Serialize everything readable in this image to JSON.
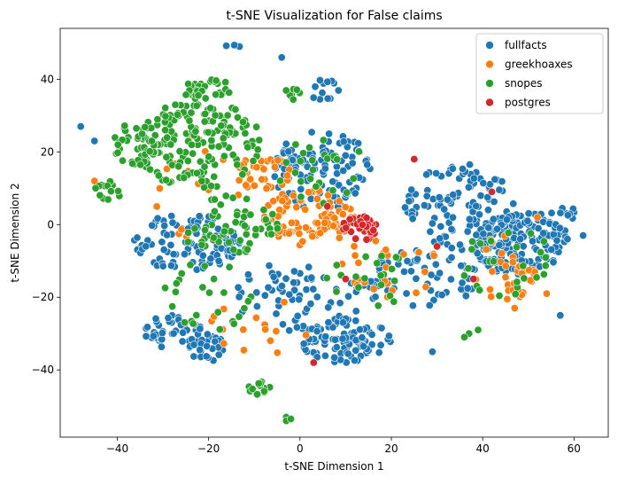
{
  "chart_data": {
    "type": "scatter",
    "title": "t-SNE Visualization for False claims",
    "xlabel": "t-SNE Dimension 1",
    "ylabel": "t-SNE Dimension 2",
    "xlim": [
      -52.5,
      67.5
    ],
    "ylim": [
      -58.5,
      54.0
    ],
    "xticks": [
      -40,
      -20,
      0,
      20,
      40,
      60
    ],
    "yticks": [
      -40,
      -20,
      0,
      20,
      40
    ],
    "grid": false,
    "legend": {
      "position": "top-right",
      "frame": true
    },
    "marker": "circle",
    "series": [
      {
        "name": "fullfacts",
        "color": "#1f77b4",
        "clusters": [
          {
            "cx": 48,
            "cy": -5,
            "rx": 10,
            "ry": 9,
            "n": 170,
            "seed": 101
          },
          {
            "cx": 35,
            "cy": 5,
            "rx": 12,
            "ry": 12,
            "n": 110,
            "seed": 102
          },
          {
            "cx": 5,
            "cy": 15,
            "rx": 11,
            "ry": 11,
            "n": 120,
            "seed": 103
          },
          {
            "cx": 10,
            "cy": -32,
            "rx": 10,
            "ry": 6,
            "n": 90,
            "seed": 104
          },
          {
            "cx": -28,
            "cy": -30,
            "rx": 7,
            "ry": 5,
            "n": 50,
            "seed": 105
          },
          {
            "cx": -20,
            "cy": -34,
            "rx": 4,
            "ry": 4,
            "n": 25,
            "seed": 106
          },
          {
            "cx": -25,
            "cy": -5,
            "rx": 12,
            "ry": 8,
            "n": 110,
            "seed": 107
          },
          {
            "cx": 25,
            "cy": -15,
            "rx": 14,
            "ry": 8,
            "n": 70,
            "seed": 108
          },
          {
            "cx": 0,
            "cy": -20,
            "rx": 15,
            "ry": 10,
            "n": 70,
            "seed": 109
          },
          {
            "cx": 5,
            "cy": 37,
            "rx": 4,
            "ry": 3,
            "n": 12,
            "seed": 110
          },
          {
            "cx": -15,
            "cy": 49,
            "rx": 2,
            "ry": 0.6,
            "n": 5,
            "seed": 111
          },
          {
            "cx": 58,
            "cy": 0,
            "rx": 4,
            "ry": 5,
            "n": 18,
            "seed": 112
          }
        ],
        "points": [
          [
            -48,
            27
          ],
          [
            -45,
            23
          ],
          [
            -4,
            46
          ],
          [
            62,
            -3
          ],
          [
            57,
            -25
          ],
          [
            29,
            -35
          ]
        ]
      },
      {
        "name": "greekhoaxes",
        "color": "#ff7f0e",
        "clusters": [
          {
            "cx": 2,
            "cy": 2,
            "rx": 10,
            "ry": 8,
            "n": 90,
            "seed": 201
          },
          {
            "cx": -8,
            "cy": 14,
            "rx": 6,
            "ry": 5,
            "n": 35,
            "seed": 202
          },
          {
            "cx": 45,
            "cy": -12,
            "rx": 7,
            "ry": 9,
            "n": 35,
            "seed": 203
          },
          {
            "cx": 20,
            "cy": -12,
            "rx": 12,
            "ry": 9,
            "n": 25,
            "seed": 204
          },
          {
            "cx": -22,
            "cy": 10,
            "rx": 12,
            "ry": 15,
            "n": 15,
            "seed": 205
          },
          {
            "cx": -5,
            "cy": -28,
            "rx": 15,
            "ry": 8,
            "n": 15,
            "seed": 206
          }
        ],
        "points": [
          [
            -45,
            12
          ],
          [
            52,
            2
          ],
          [
            54,
            -19
          ],
          [
            47,
            -23
          ]
        ]
      },
      {
        "name": "snopes",
        "color": "#2ca02c",
        "clusters": [
          {
            "cx": -22,
            "cy": 22,
            "rx": 14,
            "ry": 12,
            "n": 160,
            "seed": 301
          },
          {
            "cx": -36,
            "cy": 22,
            "rx": 5,
            "ry": 6,
            "n": 40,
            "seed": 302
          },
          {
            "cx": -42,
            "cy": 9,
            "rx": 3,
            "ry": 3,
            "n": 15,
            "seed": 303
          },
          {
            "cx": -20,
            "cy": 37,
            "rx": 6,
            "ry": 3,
            "n": 35,
            "seed": 304
          },
          {
            "cx": -15,
            "cy": 0,
            "rx": 12,
            "ry": 8,
            "n": 60,
            "seed": 305
          },
          {
            "cx": 5,
            "cy": 15,
            "rx": 10,
            "ry": 10,
            "n": 25,
            "seed": 306
          },
          {
            "cx": -20,
            "cy": -20,
            "rx": 10,
            "ry": 10,
            "n": 25,
            "seed": 307
          },
          {
            "cx": 45,
            "cy": -10,
            "rx": 10,
            "ry": 10,
            "n": 25,
            "seed": 308
          },
          {
            "cx": -9,
            "cy": -45,
            "rx": 2.5,
            "ry": 2,
            "n": 12,
            "seed": 309
          },
          {
            "cx": -2,
            "cy": 36,
            "rx": 2,
            "ry": 2,
            "n": 7,
            "seed": 310
          },
          {
            "cx": 15,
            "cy": -15,
            "rx": 10,
            "ry": 8,
            "n": 20,
            "seed": 311
          }
        ],
        "points": [
          [
            -3,
            -53
          ],
          [
            -3,
            -54
          ],
          [
            -2,
            -53.5
          ],
          [
            37,
            -30
          ],
          [
            39,
            -29
          ],
          [
            36,
            -31
          ]
        ]
      },
      {
        "name": "postgres",
        "color": "#d62728",
        "clusters": [
          {
            "cx": 13,
            "cy": -1,
            "rx": 4,
            "ry": 3.5,
            "n": 35,
            "seed": 401
          }
        ],
        "points": [
          [
            25,
            18
          ],
          [
            42,
            9
          ],
          [
            10,
            -15
          ],
          [
            3,
            -38
          ],
          [
            30,
            -6
          ],
          [
            38,
            -15
          ],
          [
            6,
            5
          ]
        ]
      }
    ]
  }
}
